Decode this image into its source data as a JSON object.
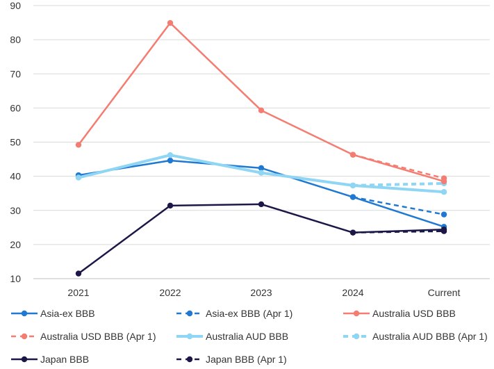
{
  "chart_data": {
    "type": "line",
    "categories": [
      "2021",
      "2022",
      "2023",
      "2024",
      "Current"
    ],
    "ylim": [
      10,
      90
    ],
    "yticks": [
      10,
      20,
      30,
      40,
      50,
      60,
      70,
      80,
      90
    ],
    "grid": "horizontal",
    "legend_position": "bottom",
    "series": [
      {
        "name": "Asia-ex BBB",
        "color": "#1f78d1",
        "dashed": false,
        "width": 2.5,
        "values": [
          40.3,
          44.6,
          42.4,
          33.9,
          25.2
        ]
      },
      {
        "name": "Asia-ex BBB (Apr 1)",
        "color": "#1f78d1",
        "dashed": true,
        "width": 2.5,
        "values": [
          null,
          null,
          null,
          33.9,
          28.8
        ]
      },
      {
        "name": "Australia USD BBB",
        "color": "#f47c70",
        "dashed": false,
        "width": 2.5,
        "values": [
          49.2,
          84.9,
          59.3,
          46.3,
          38.5
        ]
      },
      {
        "name": "Australia USD BBB (Apr 1)",
        "color": "#f47c70",
        "dashed": true,
        "width": 2.5,
        "values": [
          null,
          null,
          null,
          46.3,
          39.4
        ]
      },
      {
        "name": "Australia AUD BBB",
        "color": "#8fd6f4",
        "dashed": false,
        "width": 4,
        "values": [
          39.6,
          46.2,
          41.0,
          37.3,
          35.4
        ]
      },
      {
        "name": "Australia AUD BBB (Apr 1)",
        "color": "#8fd6f4",
        "dashed": true,
        "width": 4,
        "values": [
          null,
          null,
          null,
          37.3,
          37.9
        ]
      },
      {
        "name": "Japan BBB",
        "color": "#1b1848",
        "dashed": false,
        "width": 2.5,
        "values": [
          11.5,
          31.4,
          31.8,
          23.5,
          24.4
        ]
      },
      {
        "name": "Japan BBB (Apr 1)",
        "color": "#1b1848",
        "dashed": true,
        "width": 2.5,
        "values": [
          null,
          null,
          null,
          23.5,
          23.9
        ]
      }
    ]
  }
}
